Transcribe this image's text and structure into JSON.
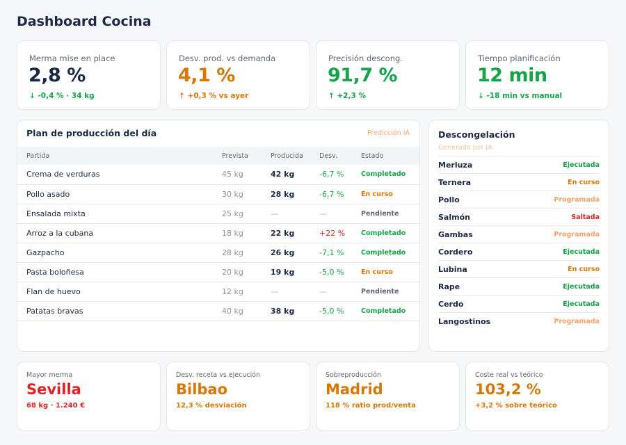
{
  "title": "Dashboard Cocina",
  "kpis": [
    {
      "label": "Merma mise en place",
      "value": "2,8 %",
      "sub": "↓ -0,4 % · 34 kg",
      "value_color": "navy",
      "sub_color": "green"
    },
    {
      "label": "Desv. prod. vs demanda",
      "value": "4,1 %",
      "sub": "↑ +0,3 % vs ayer",
      "value_color": "orange",
      "sub_color": "orange"
    },
    {
      "label": "Precisión descong.",
      "value": "91,7 %",
      "sub": "↑ +2,3 %",
      "value_color": "green",
      "sub_color": "green"
    },
    {
      "label": "Tiempo planificación",
      "value": "12 min",
      "sub": "↓ -18 min vs manual",
      "value_color": "green",
      "sub_color": "green"
    }
  ],
  "plan": {
    "title": "Plan de producción del día",
    "tag": "Predicción IA",
    "columns": [
      "Partida",
      "Prevista",
      "Producida",
      "Desv.",
      "Estado"
    ],
    "rows": [
      {
        "partida": "Crema de verduras",
        "prevista": "45 kg",
        "producida": "42 kg",
        "desv": "-6,7 %",
        "desv_color": "green",
        "estado": "Completado",
        "estado_color": "green"
      },
      {
        "partida": "Pollo asado",
        "prevista": "30 kg",
        "producida": "28 kg",
        "desv": "-6,7 %",
        "desv_color": "green",
        "estado": "En curso",
        "estado_color": "orange"
      },
      {
        "partida": "Ensalada mixta",
        "prevista": "25 kg",
        "producida": "—",
        "desv": "—",
        "desv_color": "gray",
        "estado": "Pendiente",
        "estado_color": "gray"
      },
      {
        "partida": "Arroz a la cubana",
        "prevista": "18 kg",
        "producida": "22 kg",
        "desv": "+22 %",
        "desv_color": "red",
        "estado": "Completado",
        "estado_color": "green"
      },
      {
        "partida": "Gazpacho",
        "prevista": "28 kg",
        "producida": "26 kg",
        "desv": "-7,1 %",
        "desv_color": "green",
        "estado": "Completado",
        "estado_color": "green"
      },
      {
        "partida": "Pasta boloñesa",
        "prevista": "20 kg",
        "producida": "19 kg",
        "desv": "-5,0 %",
        "desv_color": "green",
        "estado": "En curso",
        "estado_color": "orange"
      },
      {
        "partida": "Flan de huevo",
        "prevista": "12 kg",
        "producida": "—",
        "desv": "—",
        "desv_color": "gray",
        "estado": "Pendiente",
        "estado_color": "gray"
      },
      {
        "partida": "Patatas bravas",
        "prevista": "40 kg",
        "producida": "38 kg",
        "desv": "-5,0 %",
        "desv_color": "green",
        "estado": "Completado",
        "estado_color": "green"
      }
    ]
  },
  "thaw": {
    "title": "Descongelación",
    "subtitle": "Generado por IA",
    "items": [
      {
        "name": "Merluza",
        "status": "Ejecutada",
        "color": "green"
      },
      {
        "name": "Ternera",
        "status": "En curso",
        "color": "orange"
      },
      {
        "name": "Pollo",
        "status": "Programada",
        "color": "lorange"
      },
      {
        "name": "Salmón",
        "status": "Saltada",
        "color": "red"
      },
      {
        "name": "Gambas",
        "status": "Programada",
        "color": "lorange"
      },
      {
        "name": "Cordero",
        "status": "Ejecutada",
        "color": "green"
      },
      {
        "name": "Lubina",
        "status": "En curso",
        "color": "orange"
      },
      {
        "name": "Rape",
        "status": "Ejecutada",
        "color": "green"
      },
      {
        "name": "Cerdo",
        "status": "Ejecutada",
        "color": "green"
      },
      {
        "name": "Langostinos",
        "status": "Programada",
        "color": "lorange"
      }
    ]
  },
  "bottom": [
    {
      "label": "Mayor merma",
      "value": "Sevilla",
      "sub": "68 kg · 1.240 €",
      "color": "red"
    },
    {
      "label": "Desv. receta vs ejecución",
      "value": "Bilbao",
      "sub": "12,3 % desviación",
      "color": "orange"
    },
    {
      "label": "Sobreproducción",
      "value": "Madrid",
      "sub": "118 % ratio prod/venta",
      "color": "orange"
    },
    {
      "label": "Coste real vs teórico",
      "value": "103,2 %",
      "sub": "+3,2 % sobre teórico",
      "color": "orange"
    }
  ],
  "colors": {
    "green": "#16a34a",
    "orange": "#d97706",
    "light_orange": "#f5a36b",
    "red": "#dc2626",
    "navy": "#1b2a44"
  }
}
